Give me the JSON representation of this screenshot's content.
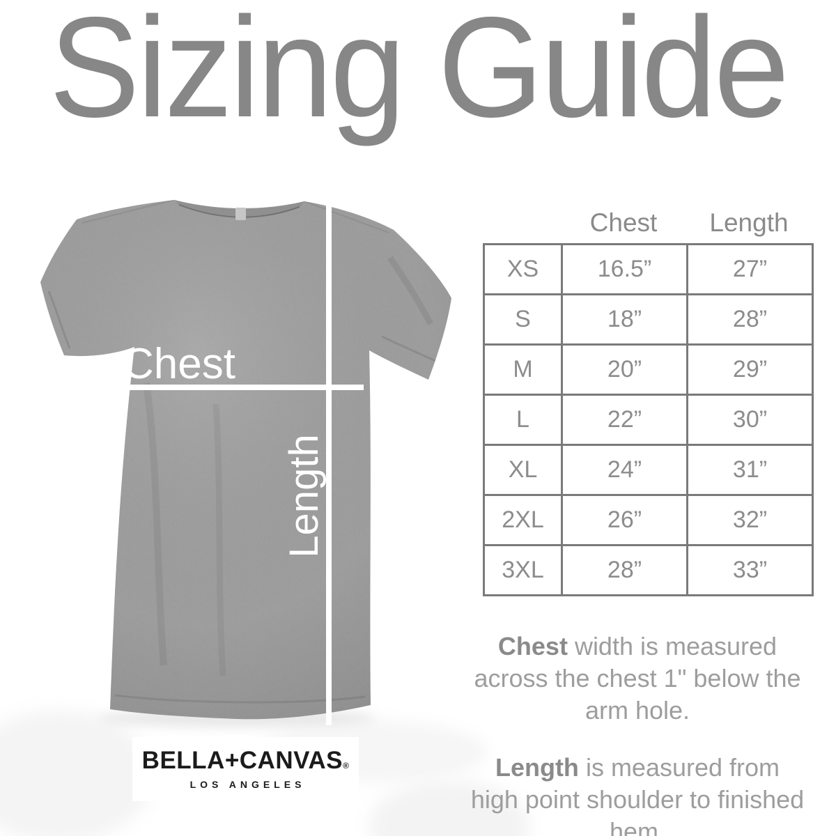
{
  "title": "Sizing Guide",
  "shirt": {
    "chest_label": "Chest",
    "length_label": "Length"
  },
  "table": {
    "columns": [
      "Chest",
      "Length"
    ],
    "rows": [
      {
        "size": "XS",
        "chest": "16.5”",
        "length": "27”"
      },
      {
        "size": "S",
        "chest": "18”",
        "length": "28”"
      },
      {
        "size": "M",
        "chest": "20”",
        "length": "29”"
      },
      {
        "size": "L",
        "chest": "22”",
        "length": "30”"
      },
      {
        "size": "XL",
        "chest": "24”",
        "length": "31”"
      },
      {
        "size": "2XL",
        "chest": "26”",
        "length": "32”"
      },
      {
        "size": "3XL",
        "chest": "28”",
        "length": "33”"
      }
    ]
  },
  "notes": [
    {
      "lead": "Chest",
      "rest": " width is measured across the chest 1\" below the arm hole."
    },
    {
      "lead": "Length",
      "rest": " is measured from high point shoulder to finished hem."
    }
  ],
  "brand": {
    "name": "BELLA+CANVAS",
    "reg": "®",
    "city": "LOS ANGELES"
  },
  "colors": {
    "title_gray": "#878787",
    "table_text_gray": "#8c8c8c",
    "table_border_gray": "#7a7a7a",
    "note_gray": "#9d9d9d",
    "note_bold_gray": "#8a8a8a",
    "shirt_heather_gray": "#a2a2a2",
    "measure_line_white": "#ffffff",
    "logo_black": "#1b1b1b"
  }
}
